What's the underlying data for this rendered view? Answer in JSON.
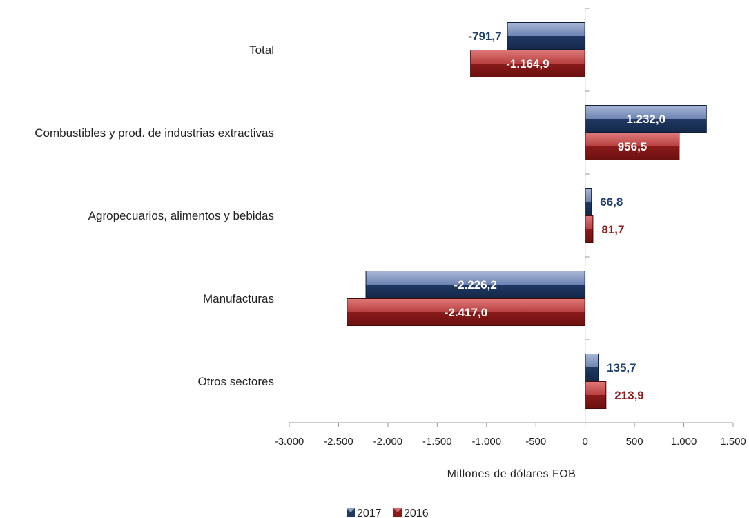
{
  "chart_data": {
    "type": "bar",
    "orientation": "horizontal",
    "categories": [
      "Total",
      "Combustibles y prod. de industrias extractivas",
      "Agropecuarios, alimentos y bebidas",
      "Manufacturas",
      "Otros sectores"
    ],
    "series": [
      {
        "name": "2017",
        "color": "#1f3864",
        "label_color": "#1f3f6e",
        "values": [
          -791.7,
          1232.0,
          66.8,
          -2226.2,
          135.7
        ],
        "labels": [
          "-791,7",
          "1.232,0",
          "66,8",
          "-2.226,2",
          "135,7"
        ]
      },
      {
        "name": "2016",
        "color": "#8b1a1a",
        "label_color": "#8b1a1a",
        "values": [
          -1164.9,
          956.5,
          81.7,
          -2417.0,
          213.9
        ],
        "labels": [
          "-1.164,9",
          "956,5",
          "81,7",
          "-2.417,0",
          "213,9"
        ]
      }
    ],
    "xlim": [
      -3000,
      1500
    ],
    "xticks": [
      -3000,
      -2500,
      -2000,
      -1500,
      -1000,
      -500,
      0,
      500,
      1000,
      1500
    ],
    "xtick_labels": [
      "-3.000",
      "-2.500",
      "-2.000",
      "-1.500",
      "-1.000",
      "-500",
      "0",
      "500",
      "1.000",
      "1.500"
    ],
    "xlabel": "Millones de dólares FOB",
    "ylabel": "",
    "title": "",
    "grid": false,
    "legend_position": "bottom-center"
  }
}
